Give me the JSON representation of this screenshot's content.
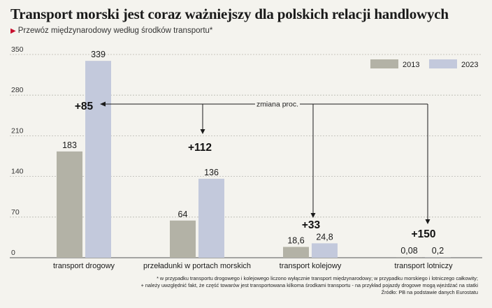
{
  "header": {
    "title": "Transport morski jest coraz ważniejszy dla polskich relacji handlowych",
    "subtitle": "Przewóz międzynarodowy według środków transportu*"
  },
  "chart_data": {
    "type": "bar",
    "title": "Transport morski jest coraz ważniejszy dla polskich relacji handlowych",
    "subtitle": "Przewóz międzynarodowy według środków transportu*",
    "categories": [
      "transport drogowy",
      "przeładunki w portach morskich",
      "transport kolejowy",
      "transport lotniczy"
    ],
    "series": [
      {
        "name": "2013",
        "values": [
          183,
          64,
          18.6,
          0.08
        ],
        "labels": [
          "183",
          "64",
          "18,6",
          "0,08"
        ],
        "color": "#b3b2a6"
      },
      {
        "name": "2023",
        "values": [
          339,
          136,
          24.8,
          0.2
        ],
        "labels": [
          "339",
          "136",
          "24,8",
          "0,2"
        ],
        "color": "#c3c9dc"
      }
    ],
    "change_labels": [
      "+85",
      "+112",
      "+33",
      "+150"
    ],
    "change_caption": "zmiana proc.",
    "ylim": [
      0,
      350
    ],
    "yticks": [
      0,
      70,
      140,
      210,
      280,
      350
    ],
    "grid": true,
    "legend": "top-right"
  },
  "footnotes": {
    "line1": "* w przypadku transportu drogowego i kolejowego liczono wyłącznie transport międzynarodowy; w przypadku morskiego i lotniczego całkowity;",
    "line2": "+ należy uwzględnić fakt, że część towarów jest transportowana kilkoma środkami transportu - na przykład pojazdy drogowe mogą wjeżdżać na statki",
    "source": "Źródło: PB na podstawie danych Eurostatu"
  },
  "colors": {
    "accent": "#c8102e",
    "bar2013": "#b3b2a6",
    "bar2023": "#c3c9dc"
  }
}
